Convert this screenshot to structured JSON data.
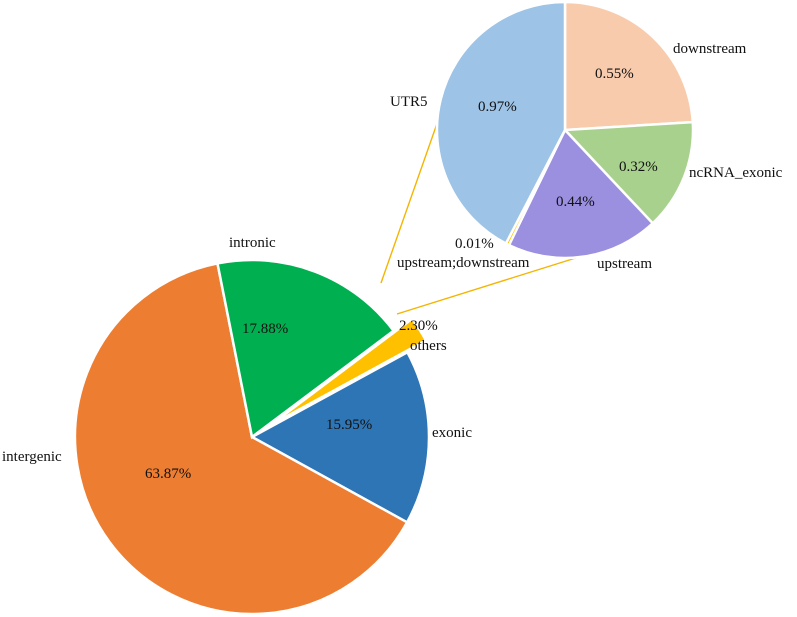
{
  "chart_data": [
    {
      "type": "pie",
      "categories": [
        "exonic",
        "intergenic",
        "intronic",
        "others"
      ],
      "values": [
        15.95,
        63.87,
        17.88,
        2.3
      ],
      "value_labels": [
        "15.95%",
        "63.87%",
        "17.88%",
        "2.30%"
      ],
      "colors": [
        "#2e75b6",
        "#ed7d31",
        "#00b050",
        "#ffc000"
      ],
      "legend": "none"
    },
    {
      "type": "pie",
      "categories": [
        "downstream",
        "ncRNA_exonic",
        "upstream",
        "upstream;downstream",
        "UTR5"
      ],
      "values": [
        0.55,
        0.32,
        0.44,
        0.01,
        0.97
      ],
      "value_labels": [
        "0.55%",
        "0.32%",
        "0.44%",
        "0.01%",
        "0.97%"
      ],
      "colors": [
        "#f8cbad",
        "#a9d18e",
        "#9b8fe0",
        "#ffc000",
        "#9dc3e6"
      ],
      "legend": "none"
    }
  ]
}
